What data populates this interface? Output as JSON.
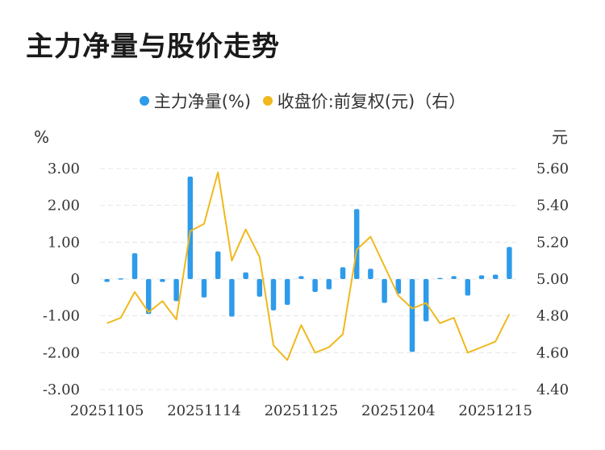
{
  "title": "主力净量与股价走势",
  "colors": {
    "bar": "#2E9BEA",
    "line": "#F0B81C",
    "grid": "#E6E6E6"
  },
  "chart_data": {
    "type": "bar+line",
    "legend": [
      {
        "name": "主力净量(%)",
        "color": "#2E9BEA",
        "icon": "circle"
      },
      {
        "name": "收盘价:前复权(元)（右）",
        "color": "#F0B81C",
        "icon": "circle"
      }
    ],
    "legend_position": "top-center",
    "grid": true,
    "left_axis": {
      "unit": "%",
      "ylim": [
        -3,
        3
      ],
      "ticks": [
        "3.00",
        "2.00",
        "1.00",
        "0",
        "-1.00",
        "-2.00",
        "-3.00"
      ]
    },
    "right_axis": {
      "unit": "元",
      "ylim": [
        4.4,
        5.6
      ],
      "ticks": [
        "5.60",
        "5.40",
        "5.20",
        "5.00",
        "4.80",
        "4.60",
        "4.40"
      ]
    },
    "x_tick_labels": [
      "20251105",
      "20251114",
      "20251125",
      "20251204",
      "20251215"
    ],
    "x_tick_positions": [
      0,
      7,
      14,
      21,
      28
    ],
    "series": [
      {
        "name": "主力净量(%)",
        "type": "bar",
        "axis": "left",
        "values": [
          -0.08,
          0.02,
          0.7,
          -0.95,
          -0.08,
          -0.6,
          2.78,
          -0.5,
          0.75,
          -1.02,
          0.18,
          -0.48,
          -0.85,
          -0.7,
          0.08,
          -0.35,
          -0.28,
          0.32,
          1.9,
          0.28,
          -0.65,
          -0.4,
          -1.98,
          -1.15,
          0.03,
          0.08,
          -0.45,
          0.1,
          0.12,
          0.87
        ]
      },
      {
        "name": "收盘价:前复权(元)（右）",
        "type": "line",
        "axis": "right",
        "values": [
          4.76,
          4.79,
          4.93,
          4.82,
          4.88,
          4.78,
          5.26,
          5.3,
          5.58,
          5.1,
          5.27,
          5.12,
          4.64,
          4.56,
          4.75,
          4.6,
          4.63,
          4.7,
          5.16,
          5.23,
          5.07,
          4.91,
          4.84,
          4.87,
          4.76,
          4.79,
          4.6,
          4.63,
          4.66,
          4.81
        ]
      }
    ]
  }
}
